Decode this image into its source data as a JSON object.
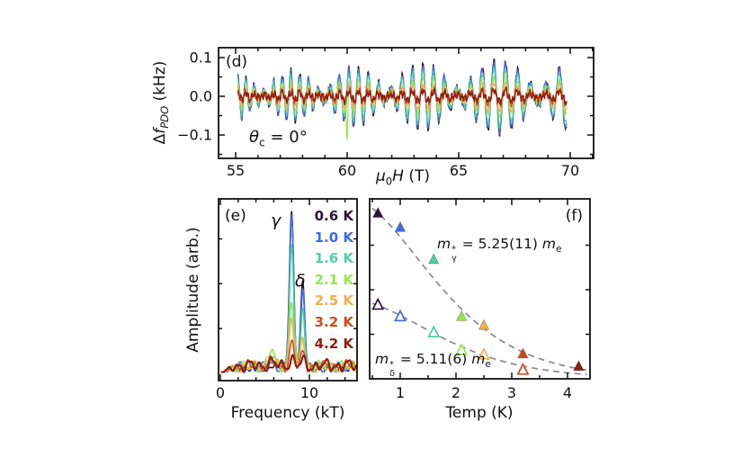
{
  "figure": {
    "background": "#ffffff",
    "axis_color": "#111111",
    "fit_color": "#8a8a8a",
    "temperatures": [
      {
        "label": "0.6 K",
        "color": "#2e1437"
      },
      {
        "label": "1.0 K",
        "color": "#3f6be4"
      },
      {
        "label": "1.6 K",
        "color": "#4ecfa4"
      },
      {
        "label": "2.1 K",
        "color": "#9ae44f"
      },
      {
        "label": "2.5 K",
        "color": "#f4af49"
      },
      {
        "label": "3.2 K",
        "color": "#d0491f"
      },
      {
        "label": "4.2 K",
        "color": "#8f1d10"
      }
    ]
  },
  "chart_data": [
    {
      "id": "d",
      "type": "line",
      "panel_label": "(d)",
      "xlabel": {
        "mu": "μ",
        "sub": "0",
        "H": "H",
        "rest": " (T)"
      },
      "ylabel": {
        "prefix": "Δ",
        "f": "f",
        "sub": "PDO",
        "rest": " (kHz)"
      },
      "annotation": {
        "sym": "θ",
        "sub": "c",
        "eq": " = 0°"
      },
      "xlim": [
        54.23,
        71.05
      ],
      "ylim": [
        -0.163,
        0.126
      ],
      "xticks": [
        55,
        60,
        65,
        70
      ],
      "xminor_step": 1,
      "ytick_values": [
        0.1,
        0.0,
        -0.1
      ],
      "ytick_labels": [
        "0.1",
        "0.0",
        "−0.1"
      ],
      "yminor_values": [
        0.05,
        -0.05,
        -0.15
      ],
      "field_range_T": [
        55.1,
        69.85
      ],
      "oscillation": {
        "freq_gamma_kT": 8.0,
        "freq_delta_kT": 9.25,
        "weight_gamma": 0.62,
        "weight_delta": 0.38,
        "envelope_base": 0.55,
        "envelope_slope": 0.45
      },
      "series": [
        {
          "temp_index": 0,
          "amplitude_kHz": 0.105,
          "noise_kHz": 0.011
        },
        {
          "temp_index": 1,
          "amplitude_kHz": 0.098,
          "noise_kHz": 0.011
        },
        {
          "temp_index": 2,
          "amplitude_kHz": 0.082,
          "noise_kHz": 0.011
        },
        {
          "temp_index": 3,
          "amplitude_kHz": 0.055,
          "noise_kHz": 0.011,
          "spike_B_T": 60.0,
          "spike_kHz": -0.125
        },
        {
          "temp_index": 4,
          "amplitude_kHz": 0.042,
          "noise_kHz": 0.012
        },
        {
          "temp_index": 5,
          "amplitude_kHz": 0.022,
          "noise_kHz": 0.013
        },
        {
          "temp_index": 6,
          "amplitude_kHz": 0.016,
          "noise_kHz": 0.015
        }
      ]
    },
    {
      "id": "e",
      "type": "line",
      "panel_label": "(e)",
      "xlabel": "Frequency (kT)",
      "ylabel": "Amplitude (arb.)",
      "xlim": [
        0,
        15.35
      ],
      "xticks": [
        0,
        10
      ],
      "xminor_step": 2,
      "peaks": {
        "gamma": {
          "label": "γ",
          "freq_kT": 8.0,
          "width_kT": 0.33
        },
        "delta": {
          "label": "δ",
          "freq_kT": 9.25,
          "width_kT": 0.3
        }
      },
      "side_bump_freq_kT": 5.7,
      "series": [
        {
          "temp_index": 0,
          "gamma_height": 1.0,
          "delta_height": 0.55,
          "side_bump": 0.02,
          "noise": 0.03
        },
        {
          "temp_index": 1,
          "gamma_height": 0.95,
          "delta_height": 0.5,
          "side_bump": 0.03,
          "noise": 0.03
        },
        {
          "temp_index": 2,
          "gamma_height": 0.78,
          "delta_height": 0.37,
          "side_bump": 0.05,
          "noise": 0.032
        },
        {
          "temp_index": 3,
          "gamma_height": 0.42,
          "delta_height": 0.21,
          "side_bump": 0.1,
          "noise": 0.034
        },
        {
          "temp_index": 4,
          "gamma_height": 0.33,
          "delta_height": 0.17,
          "side_bump": 0.06,
          "noise": 0.034
        },
        {
          "temp_index": 5,
          "gamma_height": 0.15,
          "delta_height": 0.08,
          "side_bump": 0.03,
          "noise": 0.036
        },
        {
          "temp_index": 6,
          "gamma_height": 0.05,
          "delta_height": 0.03,
          "side_bump": 0.02,
          "noise": 0.04
        }
      ]
    },
    {
      "id": "f",
      "type": "scatter",
      "panel_label": "(f)",
      "xlabel": "Temp (K)",
      "xlim": [
        0.45,
        4.4
      ],
      "xticks": [
        1,
        2,
        3,
        4
      ],
      "xminor_step": 0.5,
      "yminor_values": [
        0.25,
        0.5,
        0.75
      ],
      "series": [
        {
          "name": "gamma",
          "marker": "filled-triangle",
          "temps_K": [
            0.6,
            1.0,
            1.6,
            2.1,
            2.5,
            3.2,
            4.2
          ],
          "amplitudes": [
            0.93,
            0.85,
            0.67,
            0.35,
            0.3,
            0.14,
            0.07
          ],
          "temp_indices": [
            0,
            1,
            2,
            3,
            4,
            5,
            6
          ],
          "fit": {
            "A0": 1.02,
            "c_perK": 1.248
          },
          "mass_label": {
            "var": "m",
            "sup": "*",
            "sub": "γ",
            "eq": " = ",
            "value": "5.25(11) ",
            "unit": "m",
            "unit_sub": "e"
          }
        },
        {
          "name": "delta",
          "marker": "open-triangle",
          "temps_K": [
            0.6,
            1.0,
            1.6,
            2.1,
            2.5,
            3.2
          ],
          "amplitudes": [
            0.415,
            0.35,
            0.26,
            0.16,
            0.135,
            0.05
          ],
          "temp_indices": [
            0,
            1,
            2,
            3,
            4,
            5
          ],
          "fit": {
            "A0": 0.45,
            "c_perK": 1.215
          },
          "mass_label": {
            "var": "m",
            "sup": "*",
            "sub": "δ",
            "eq": " = ",
            "value": "5.11(6) ",
            "unit": "m",
            "unit_sub": "e"
          }
        }
      ]
    }
  ]
}
